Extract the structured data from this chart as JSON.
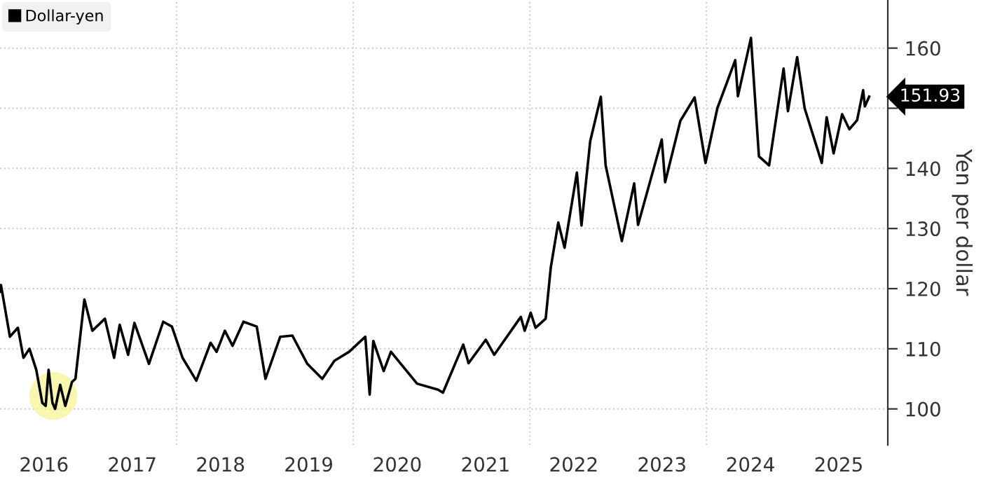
{
  "chart_data": {
    "type": "line",
    "ylabel": "Yen per dollar",
    "legend": "top left",
    "grid": true,
    "line_style": "solid",
    "marker": "none",
    "xlim": [
      "2016-01-01",
      "2026-01-20"
    ],
    "ylim": [
      94,
      168
    ],
    "yticks": [
      100,
      110,
      120,
      130,
      140,
      {
        "value": 150,
        "label": null
      },
      160
    ],
    "xticks": [
      {
        "value": "2016-07-01",
        "label": "2016"
      },
      {
        "value": "2017-07-01",
        "label": "2017"
      },
      {
        "value": "2018-01-01",
        "label": null
      },
      {
        "value": "2018-07-01",
        "label": "2018"
      },
      {
        "value": "2019-07-01",
        "label": "2019"
      },
      {
        "value": "2020-01-01",
        "label": null
      },
      {
        "value": "2020-07-01",
        "label": "2020"
      },
      {
        "value": "2021-07-01",
        "label": "2021"
      },
      {
        "value": "2022-01-01",
        "label": null
      },
      {
        "value": "2022-07-01",
        "label": "2022"
      },
      {
        "value": "2023-07-01",
        "label": "2023"
      },
      {
        "value": "2024-01-01",
        "label": null
      },
      {
        "value": "2024-07-01",
        "label": "2024"
      },
      {
        "value": "2025-07-01",
        "label": "2025"
      }
    ],
    "annotations": [
      "151.93"
    ],
    "series": [
      {
        "name": "Dollar-yen",
        "color": "#000000",
        "x": [
          "2016-01-01",
          "2016-01-05",
          "2016-02-11",
          "2016-03-15",
          "2016-04-07",
          "2016-05-02",
          "2016-05-30",
          "2016-06-24",
          "2016-07-08",
          "2016-07-20",
          "2016-08-05",
          "2016-08-16",
          "2016-09-06",
          "2016-09-27",
          "2016-10-25",
          "2016-11-08",
          "2016-12-15",
          "2017-01-17",
          "2017-03-10",
          "2017-04-17",
          "2017-05-10",
          "2017-06-14",
          "2017-07-10",
          "2017-09-08",
          "2017-11-06",
          "2017-12-12",
          "2018-01-25",
          "2018-03-23",
          "2018-05-21",
          "2018-06-15",
          "2018-07-19",
          "2018-08-20",
          "2018-10-04",
          "2018-11-28",
          "2019-01-03",
          "2019-03-05",
          "2019-04-24",
          "2019-06-25",
          "2019-08-26",
          "2019-10-15",
          "2019-12-15",
          "2020-02-20",
          "2020-03-09",
          "2020-03-24",
          "2020-05-06",
          "2020-06-05",
          "2020-09-21",
          "2020-12-17",
          "2021-01-06",
          "2021-03-31",
          "2021-04-22",
          "2021-07-02",
          "2021-08-06",
          "2021-11-24",
          "2021-12-10",
          "2022-01-04",
          "2022-01-24",
          "2022-03-07",
          "2022-03-28",
          "2022-04-28",
          "2022-05-24",
          "2022-07-14",
          "2022-08-02",
          "2022-09-07",
          "2022-10-21",
          "2022-11-10",
          "2023-01-16",
          "2023-03-08",
          "2023-03-24",
          "2023-06-30",
          "2023-07-14",
          "2023-09-15",
          "2023-11-13",
          "2023-12-28",
          "2024-02-15",
          "2024-04-29",
          "2024-05-10",
          "2024-07-03",
          "2024-08-05",
          "2024-09-16",
          "2024-11-15",
          "2024-12-03",
          "2025-01-10",
          "2025-02-10",
          "2025-04-22",
          "2025-05-12",
          "2025-06-10",
          "2025-07-15",
          "2025-08-14",
          "2025-09-15",
          "2025-10-10",
          "2025-10-17",
          "2025-11-04"
        ],
        "values": [
          119.5,
          120.6,
          112,
          113.5,
          108.5,
          110,
          106.5,
          101,
          100.5,
          106.5,
          101,
          100,
          104,
          100.5,
          104.5,
          105,
          118.2,
          113,
          115,
          108.5,
          114,
          109,
          114.3,
          107.5,
          114.5,
          113.7,
          108.5,
          104.7,
          111,
          109.5,
          113,
          110.5,
          114.5,
          113.7,
          105,
          112,
          112.2,
          107.5,
          105,
          108,
          109.5,
          112,
          102.4,
          111.3,
          106.3,
          109.5,
          104.2,
          103.2,
          102.7,
          110.7,
          107.6,
          111.5,
          109,
          115.3,
          113,
          116,
          113.5,
          115,
          123.5,
          131,
          126.8,
          139.3,
          130.5,
          144.5,
          151.9,
          140.5,
          127.9,
          137.5,
          130.6,
          144.8,
          137.7,
          147.9,
          151.8,
          140.9,
          150,
          158,
          152,
          161.7,
          142,
          140.5,
          156.6,
          149.5,
          158.5,
          150,
          140.9,
          148.5,
          142.5,
          149,
          146.5,
          148,
          153,
          150.3,
          151.93
        ]
      }
    ]
  }
}
